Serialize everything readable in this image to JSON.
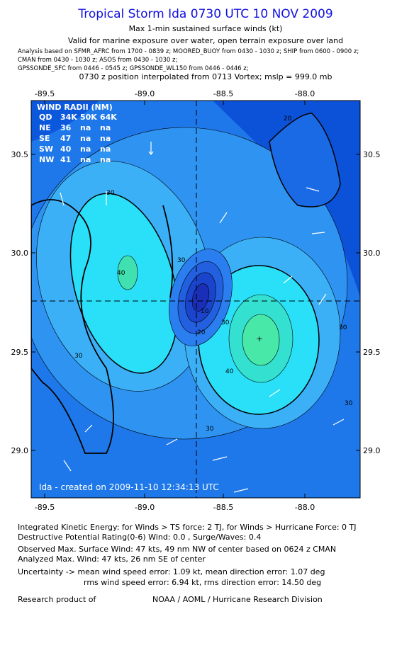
{
  "header": {
    "title": "Tropical Storm Ida 0730 UTC 10 NOV 2009",
    "subtitle": "Max 1-min sustained surface winds (kt)",
    "validity": "Valid for marine exposure over water, open terrain exposure over land",
    "analysis_lines": [
      "Analysis based on   SFMR_AFRC from 1700 - 0839 z;  MOORED_BUOY from 0430 - 1030 z;  SHIP from 0600 - 0900 z;",
      "CMAN from 0430 - 1030 z;  ASOS from 0430 - 1030 z;",
      "GPSSONDE_SFC from 0446 - 0545 z;  GPSSONDE_WL150 from 0446 - 0446 z;"
    ],
    "position": "0730 z position interpolated from 0713 Vortex; mslp = 999.0 mb"
  },
  "map": {
    "lon_labels": [
      "-89.5",
      "-89.0",
      "-88.5",
      "-88.0"
    ],
    "lat_labels": [
      "30.5",
      "30.0",
      "29.5",
      "29.0"
    ],
    "wind_radii": {
      "title": "WIND RADII (NM)",
      "rows": [
        [
          "QD",
          "34K",
          "50K",
          "64K"
        ],
        [
          "NE",
          "36",
          "na",
          "na"
        ],
        [
          "SE",
          "47",
          "na",
          "na"
        ],
        [
          "SW",
          "40",
          "na",
          "na"
        ],
        [
          "NW",
          "41",
          "na",
          "na"
        ]
      ]
    },
    "contour_labels": [
      "30",
      "40",
      "30",
      "30",
      "10",
      "20",
      "30",
      "40",
      "30",
      "30",
      "20",
      "30"
    ],
    "credit": "Ida - created on 2009-11-10 12:34:13 UTC"
  },
  "footer": {
    "lines": [
      "Integrated Kinetic Energy:  for Winds > TS force: 2 TJ,  for Winds > Hurricane Force: 0 TJ",
      "Destructive Potential Rating(0-6)   Wind: 0.0 , Surge/Waves: 0.4",
      "Observed Max. Surface Wind: 47 kts, 49 nm NW of center based on 0624 z CMAN",
      "Analyzed Max. Wind: 47 kts, 26 nm SE of center",
      "Uncertainty -> mean wind speed error: 1.09 kt,   mean direction error: 1.07 deg",
      "rms wind speed error: 6.94 kt,   rms direction error: 14.50 deg"
    ],
    "research": "Research product of",
    "org": "NOAA / AOML / Hurricane Research Division"
  }
}
